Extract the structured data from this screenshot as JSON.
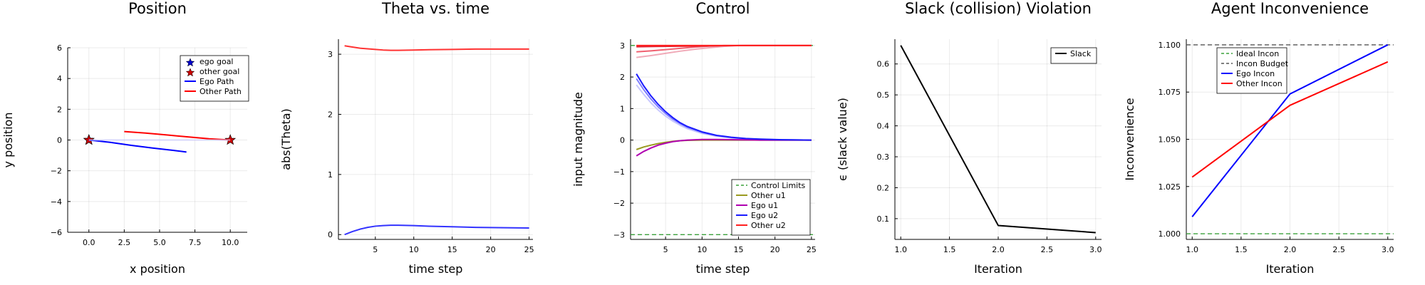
{
  "chart_data": [
    {
      "type": "scatter",
      "title": "Position",
      "xlabel": "x position",
      "ylabel": "y position",
      "xlim": [
        -1.5,
        11.2
      ],
      "ylim": [
        -6,
        6
      ],
      "xticks": [
        0,
        2.5,
        5,
        7.5,
        10
      ],
      "xtick_labels": [
        "0.0",
        "2.5",
        "5.0",
        "7.5",
        "10.0"
      ],
      "yticks": [
        -6,
        -4,
        -2,
        0,
        2,
        4,
        6
      ],
      "ytick_labels": [
        "−6",
        "−4",
        "−2",
        "0",
        "2",
        "4",
        "6"
      ],
      "legend_position": "top-right",
      "series": [
        {
          "name": "ego goal",
          "kind": "marker",
          "marker": "star",
          "color": "#0000cc",
          "points": [
            [
              0,
              0
            ]
          ]
        },
        {
          "name": "other goal",
          "kind": "marker",
          "marker": "star",
          "color": "#cc0000",
          "points": [
            [
              10,
              0
            ],
            [
              0,
              0
            ]
          ]
        },
        {
          "name": "Ego Path",
          "kind": "line",
          "color": "#0000ff",
          "points": [
            [
              0,
              0
            ],
            [
              1.5,
              -0.15
            ],
            [
              3,
              -0.35
            ],
            [
              4.5,
              -0.52
            ],
            [
              6,
              -0.68
            ],
            [
              6.9,
              -0.78
            ]
          ]
        },
        {
          "name": "Other Path",
          "kind": "line",
          "color": "#ff0000",
          "points": [
            [
              2.5,
              0.55
            ],
            [
              4,
              0.45
            ],
            [
              5.5,
              0.33
            ],
            [
              7,
              0.2
            ],
            [
              8.5,
              0.08
            ],
            [
              10,
              0
            ]
          ]
        },
        {
          "name": "",
          "kind": "line",
          "color": "#ccccff",
          "opacity": 0.7,
          "points": [
            [
              0,
              0
            ],
            [
              3,
              0.0
            ],
            [
              6,
              0.0
            ],
            [
              10,
              0
            ]
          ]
        }
      ]
    },
    {
      "type": "line",
      "title": "Theta vs. time",
      "xlabel": "time step",
      "ylabel": "abs(Theta)",
      "xlim": [
        0.2,
        25.5
      ],
      "ylim": [
        -0.08,
        3.25
      ],
      "xticks": [
        5,
        10,
        15,
        20,
        25
      ],
      "xtick_labels": [
        "5",
        "10",
        "15",
        "20",
        "25"
      ],
      "yticks": [
        0,
        1,
        2,
        3
      ],
      "ytick_labels": [
        "0",
        "1",
        "2",
        "3"
      ],
      "series": [
        {
          "name": "",
          "color": "#ff3333",
          "x": [
            1,
            2,
            3,
            4,
            5,
            6,
            7,
            8,
            10,
            12,
            15,
            18,
            21,
            25
          ],
          "y": [
            3.14,
            3.12,
            3.1,
            3.09,
            3.08,
            3.07,
            3.065,
            3.065,
            3.07,
            3.075,
            3.08,
            3.085,
            3.085,
            3.085
          ]
        },
        {
          "name": "",
          "color": "#3333ff",
          "x": [
            1,
            2,
            3,
            4,
            5,
            6,
            7,
            8,
            10,
            12,
            15,
            18,
            21,
            25
          ],
          "y": [
            0.0,
            0.05,
            0.09,
            0.12,
            0.14,
            0.15,
            0.155,
            0.155,
            0.15,
            0.14,
            0.13,
            0.12,
            0.115,
            0.11
          ]
        }
      ]
    },
    {
      "type": "line",
      "title": "Control",
      "xlabel": "time step",
      "ylabel": "input magnitude",
      "xlim": [
        0.2,
        25.5
      ],
      "ylim": [
        -3.15,
        3.2
      ],
      "xticks": [
        5,
        10,
        15,
        20,
        25
      ],
      "xtick_labels": [
        "5",
        "10",
        "15",
        "20",
        "25"
      ],
      "yticks": [
        -3,
        -2,
        -1,
        0,
        1,
        2,
        3
      ],
      "ytick_labels": [
        "−3",
        "−2",
        "−1",
        "0",
        "1",
        "2",
        "3"
      ],
      "legend_position": "bottom-right",
      "series": [
        {
          "name": "Control Limits",
          "color": "#3aa03a",
          "dash": true,
          "x": [
            0.2,
            25.5
          ],
          "y": [
            -3,
            -3
          ]
        },
        {
          "name": "",
          "color": "#3aa03a",
          "dash": true,
          "legend": false,
          "x": [
            0.2,
            25.5
          ],
          "y": [
            3,
            3
          ]
        },
        {
          "name": "",
          "color": "#f0aab8",
          "legend": false,
          "x": [
            1,
            3,
            5,
            7,
            9,
            11,
            13,
            15,
            25
          ],
          "y": [
            2.62,
            2.68,
            2.75,
            2.82,
            2.88,
            2.93,
            2.97,
            3.0,
            3.0
          ]
        },
        {
          "name": "",
          "color": "#f06070",
          "legend": false,
          "x": [
            1,
            3,
            5,
            7,
            9,
            11,
            13,
            15,
            25
          ],
          "y": [
            2.8,
            2.83,
            2.87,
            2.91,
            2.95,
            2.98,
            3.0,
            3.0,
            3.0
          ]
        },
        {
          "name": "",
          "color": "#e02030",
          "legend": false,
          "x": [
            1,
            4,
            8,
            12,
            16,
            25
          ],
          "y": [
            2.96,
            2.97,
            2.98,
            2.99,
            3.0,
            3.0
          ]
        },
        {
          "name": "",
          "color": "#c8c8ff",
          "legend": false,
          "x": [
            1,
            2,
            3,
            4,
            5,
            6,
            7,
            8,
            10,
            12,
            14,
            16,
            18,
            21,
            25
          ],
          "y": [
            1.75,
            1.45,
            1.18,
            0.95,
            0.76,
            0.6,
            0.47,
            0.36,
            0.21,
            0.12,
            0.07,
            0.04,
            0.02,
            0.01,
            0.0
          ]
        },
        {
          "name": "",
          "color": "#8080ff",
          "legend": false,
          "x": [
            1,
            2,
            3,
            4,
            5,
            6,
            7,
            8,
            10,
            12,
            14,
            16,
            18,
            21,
            25
          ],
          "y": [
            1.95,
            1.6,
            1.3,
            1.05,
            0.84,
            0.66,
            0.52,
            0.4,
            0.24,
            0.14,
            0.08,
            0.04,
            0.02,
            0.01,
            0.0
          ]
        },
        {
          "name": "Other u1",
          "color": "#9a9a20",
          "x": [
            1,
            2,
            3,
            4,
            5,
            6,
            7,
            8,
            10,
            12,
            15,
            18,
            21,
            25
          ],
          "y": [
            -0.3,
            -0.22,
            -0.16,
            -0.11,
            -0.07,
            -0.04,
            -0.02,
            -0.01,
            0.0,
            0.0,
            0.0,
            0.0,
            0.0,
            0.0
          ]
        },
        {
          "name": "Ego u1",
          "color": "#b000b0",
          "x": [
            1,
            2,
            3,
            4,
            5,
            6,
            7,
            8,
            10,
            12,
            15,
            18,
            21,
            25
          ],
          "y": [
            -0.5,
            -0.36,
            -0.25,
            -0.16,
            -0.1,
            -0.05,
            -0.02,
            0.0,
            0.02,
            0.02,
            0.01,
            0.0,
            0.0,
            0.0
          ]
        },
        {
          "name": "Ego u2",
          "color": "#1a1aff",
          "x": [
            1,
            2,
            3,
            4,
            5,
            6,
            7,
            8,
            10,
            12,
            14,
            16,
            18,
            21,
            25
          ],
          "y": [
            2.1,
            1.72,
            1.4,
            1.13,
            0.9,
            0.71,
            0.55,
            0.43,
            0.26,
            0.15,
            0.09,
            0.05,
            0.03,
            0.01,
            0.0
          ]
        },
        {
          "name": "Other u2",
          "color": "#ff2020",
          "x": [
            1,
            25
          ],
          "y": [
            3.0,
            3.0
          ]
        }
      ]
    },
    {
      "type": "line",
      "title": "Slack (collision) Violation",
      "xlabel": "Iteration",
      "ylabel": "ϵ (slack value)",
      "xlim": [
        0.94,
        3.06
      ],
      "ylim": [
        0.033,
        0.68
      ],
      "xticks": [
        1.0,
        1.5,
        2.0,
        2.5,
        3.0
      ],
      "xtick_labels": [
        "1.0",
        "1.5",
        "2.0",
        "2.5",
        "3.0"
      ],
      "yticks": [
        0.1,
        0.2,
        0.3,
        0.4,
        0.5,
        0.6
      ],
      "ytick_labels": [
        "0.1",
        "0.2",
        "0.3",
        "0.4",
        "0.5",
        "0.6"
      ],
      "legend_position": "top-right",
      "series": [
        {
          "name": "Slack",
          "color": "#000000",
          "x": [
            1,
            2,
            3
          ],
          "y": [
            0.66,
            0.078,
            0.055
          ]
        }
      ]
    },
    {
      "type": "line",
      "title": "Agent Inconvenience",
      "xlabel": "Iteration",
      "ylabel": "Inconvenience",
      "xlim": [
        0.94,
        3.06
      ],
      "ylim": [
        0.997,
        1.103
      ],
      "xticks": [
        1.0,
        1.5,
        2.0,
        2.5,
        3.0
      ],
      "xtick_labels": [
        "1.0",
        "1.5",
        "2.0",
        "2.5",
        "3.0"
      ],
      "yticks": [
        1.0,
        1.025,
        1.05,
        1.075,
        1.1
      ],
      "ytick_labels": [
        "1.000",
        "1.025",
        "1.050",
        "1.075",
        "1.100"
      ],
      "legend_position": "top-left",
      "series": [
        {
          "name": "Ideal Incon",
          "color": "#3aa03a",
          "dash": true,
          "x": [
            0.94,
            3.06
          ],
          "y": [
            1.0,
            1.0
          ]
        },
        {
          "name": "Incon Budget",
          "color": "#555555",
          "dash": true,
          "x": [
            0.94,
            3.06
          ],
          "y": [
            1.1,
            1.1
          ]
        },
        {
          "name": "Ego Incon",
          "color": "#0000ff",
          "x": [
            1,
            2,
            3
          ],
          "y": [
            1.009,
            1.074,
            1.1
          ]
        },
        {
          "name": "Other Incon",
          "color": "#ff0000",
          "x": [
            1,
            2,
            3
          ],
          "y": [
            1.03,
            1.068,
            1.091
          ]
        }
      ]
    }
  ]
}
